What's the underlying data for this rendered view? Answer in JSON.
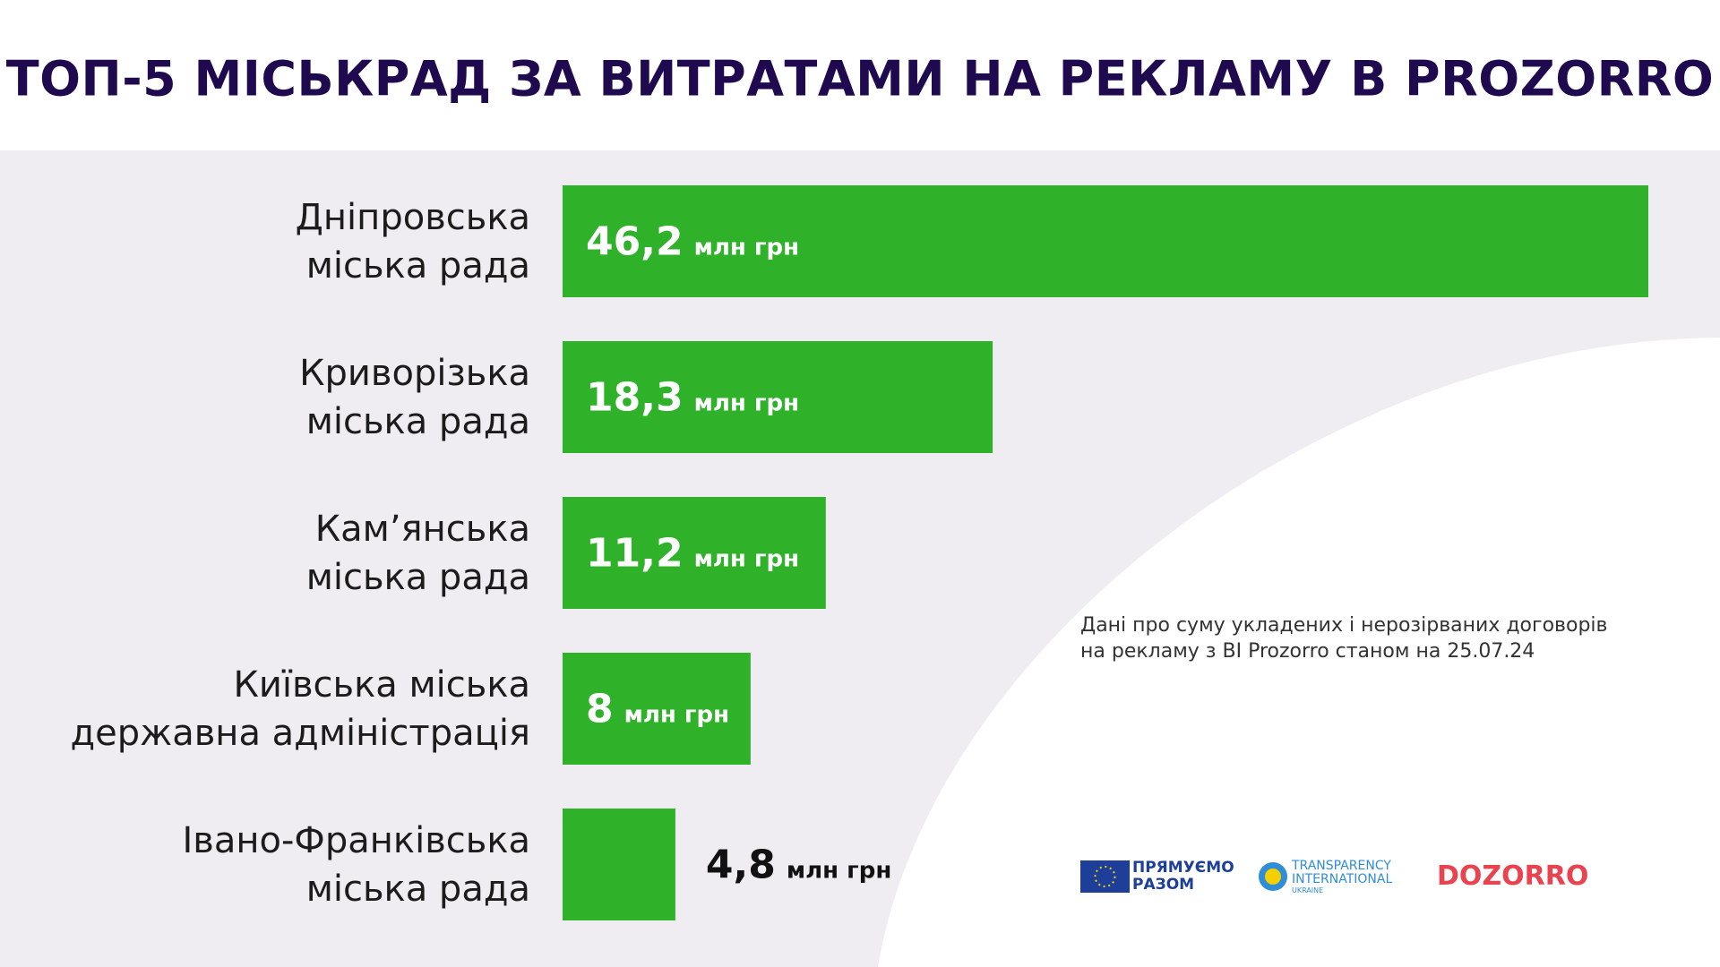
{
  "chart_data": {
    "type": "bar",
    "orientation": "horizontal",
    "title": "ТОП-5 МІСЬКРАД ЗА ВИТРАТАМИ НА РЕКЛАМУ В PROZORRO",
    "categories": [
      "Дніпровська\nміська рада",
      "Криворізька\nміська рада",
      "Кам’янська\nміська рада",
      "Київська міська\nдержавна адміністрація",
      "Івано-Франківська\nміська рада"
    ],
    "values": [
      46.2,
      18.3,
      11.2,
      8,
      4.8
    ],
    "value_labels": [
      "46,2",
      "18,3",
      "11,2",
      "8",
      "4,8"
    ],
    "unit": "млн грн",
    "color": "#2fb22a",
    "xlim": [
      0,
      46.2
    ],
    "note": "Дані про суму укладених і нерозірваних договорів\nна рекламу з BI Prozorro станом на 25.07.24"
  },
  "logos": {
    "eu": "ПРЯМУЄМО\nРАЗОМ",
    "ti": "TRANSPARENCY\nINTERNATIONAL",
    "ti_sub": "UKRAINE",
    "dozorro": "DOZORRO"
  }
}
